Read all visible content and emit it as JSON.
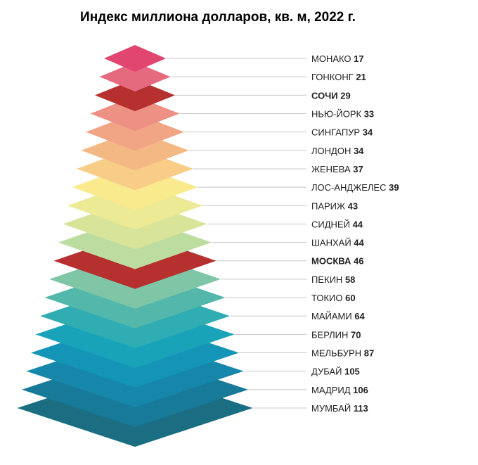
{
  "chart_data": {
    "type": "pyramid",
    "title": "Индекс миллиона долларов, кв. м, 2022 г.",
    "highlight_color": "#b83232",
    "label_color": "#222222",
    "items": [
      {
        "name": "МОНАКО",
        "value": 17,
        "color": "#e0466f",
        "highlight": false
      },
      {
        "name": "ГОНКОНГ",
        "value": 21,
        "color": "#e66a7e",
        "highlight": false
      },
      {
        "name": "СОЧИ",
        "value": 29,
        "color": "#b5302e",
        "highlight": true
      },
      {
        "name": "НЬЮ-ЙОРК",
        "value": 33,
        "color": "#ee9185",
        "highlight": false
      },
      {
        "name": "СИНГАПУР",
        "value": 34,
        "color": "#f1a585",
        "highlight": false
      },
      {
        "name": "ЛОНДОН",
        "value": 34,
        "color": "#f4b884",
        "highlight": false
      },
      {
        "name": "ЖЕНЕВА",
        "value": 37,
        "color": "#f8cd87",
        "highlight": false
      },
      {
        "name": "ЛОС-АНДЖЕЛЕС",
        "value": 39,
        "color": "#faea8e",
        "highlight": false
      },
      {
        "name": "ПАРИЖ",
        "value": 43,
        "color": "#ecea94",
        "highlight": false
      },
      {
        "name": "СИДНЕЙ",
        "value": 44,
        "color": "#d8e49a",
        "highlight": false
      },
      {
        "name": "ШАНХАЙ",
        "value": 44,
        "color": "#bcdca0",
        "highlight": false
      },
      {
        "name": "МОСКВА",
        "value": 46,
        "color": "#b5302e",
        "highlight": true
      },
      {
        "name": "ПЕКИН",
        "value": 58,
        "color": "#7ec6a6",
        "highlight": false
      },
      {
        "name": "ТОКИО",
        "value": 60,
        "color": "#53b8ab",
        "highlight": false
      },
      {
        "name": "МАЙАМИ",
        "value": 64,
        "color": "#2fadb2",
        "highlight": false
      },
      {
        "name": "БЕРЛИН",
        "value": 70,
        "color": "#19a3b9",
        "highlight": false
      },
      {
        "name": "МЕЛЬБУРН",
        "value": 87,
        "color": "#1495b8",
        "highlight": false
      },
      {
        "name": "ДУБАЙ",
        "value": 105,
        "color": "#1686ab",
        "highlight": false
      },
      {
        "name": "МАДРИД",
        "value": 106,
        "color": "#177a98",
        "highlight": false
      },
      {
        "name": "МУМБАЙ",
        "value": 113,
        "color": "#1b6e82",
        "highlight": false
      }
    ]
  }
}
